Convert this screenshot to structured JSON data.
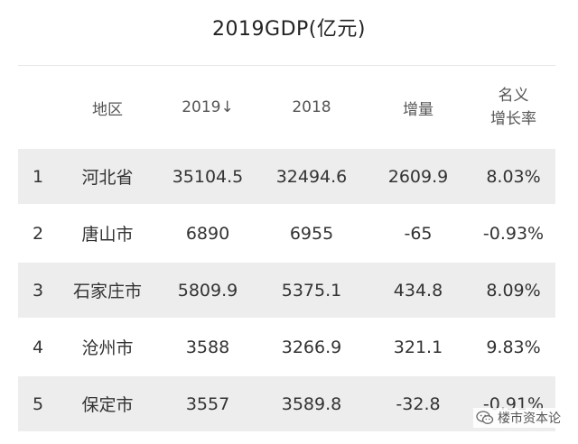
{
  "title": "2019GDP(亿元)",
  "headers": {
    "region": "地区",
    "y2019": "2019↓",
    "y2018": "2018",
    "increase": "增量",
    "rate_line1": "名义",
    "rate_line2": "增长率"
  },
  "rows": [
    {
      "rank": "1",
      "region": "河北省",
      "y2019": "35104.5",
      "y2018": "32494.6",
      "increase": "2609.9",
      "rate": "8.03%"
    },
    {
      "rank": "2",
      "region": "唐山市",
      "y2019": "6890",
      "y2018": "6955",
      "increase": "-65",
      "rate": "-0.93%"
    },
    {
      "rank": "3",
      "region": "石家庄市",
      "y2019": "5809.9",
      "y2018": "5375.1",
      "increase": "434.8",
      "rate": "8.09%"
    },
    {
      "rank": "4",
      "region": "沧州市",
      "y2019": "3588",
      "y2018": "3266.9",
      "increase": "321.1",
      "rate": "9.83%"
    },
    {
      "rank": "5",
      "region": "保定市",
      "y2019": "3557",
      "y2018": "3589.8",
      "increase": "-32.8",
      "rate": "-0.91%"
    }
  ],
  "watermark": {
    "icon": "wechat-icon",
    "text": "楼市资本论"
  }
}
